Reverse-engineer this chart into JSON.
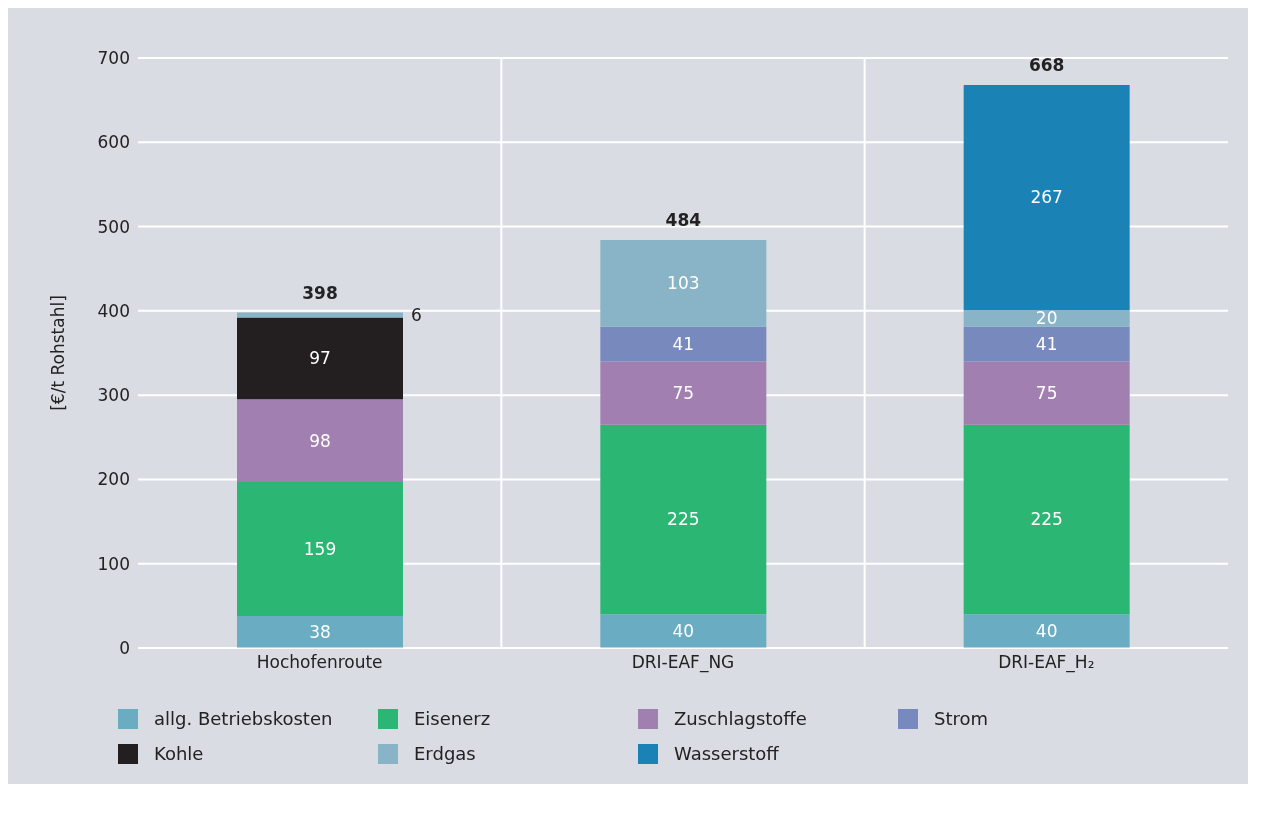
{
  "chart_data": {
    "type": "bar",
    "ylabel": "[€/t Rohstahl]",
    "categories": [
      "Hochofenroute",
      "DRI-EAF_NG",
      "DRI-EAF_H₂"
    ],
    "series": [
      {
        "name": "allg. Betriebskosten",
        "color": "#6aadc3",
        "values": [
          38,
          40,
          40
        ]
      },
      {
        "name": "Eisenerz",
        "color": "#2bb673",
        "values": [
          159,
          225,
          225
        ]
      },
      {
        "name": "Zuschlagstoffe",
        "color": "#a17fb0",
        "values": [
          98,
          75,
          75
        ]
      },
      {
        "name": "Strom",
        "color": "#7889bd",
        "values": [
          null,
          41,
          41
        ]
      },
      {
        "name": "Kohle",
        "color": "#231f20",
        "values": [
          97,
          null,
          null
        ]
      },
      {
        "name": "Erdgas",
        "color": "#89b3c6",
        "values": [
          6,
          103,
          20
        ]
      },
      {
        "name": "Wasserstoff",
        "color": "#1a82b5",
        "values": [
          null,
          null,
          267
        ]
      }
    ],
    "stacked": true,
    "data_labels": true,
    "totals": [
      "398",
      "484",
      "668"
    ],
    "ylim": [
      0,
      700
    ],
    "yticks": [
      0,
      100,
      200,
      300,
      400,
      500,
      600,
      700
    ],
    "grid": true,
    "legend": "bottom"
  }
}
